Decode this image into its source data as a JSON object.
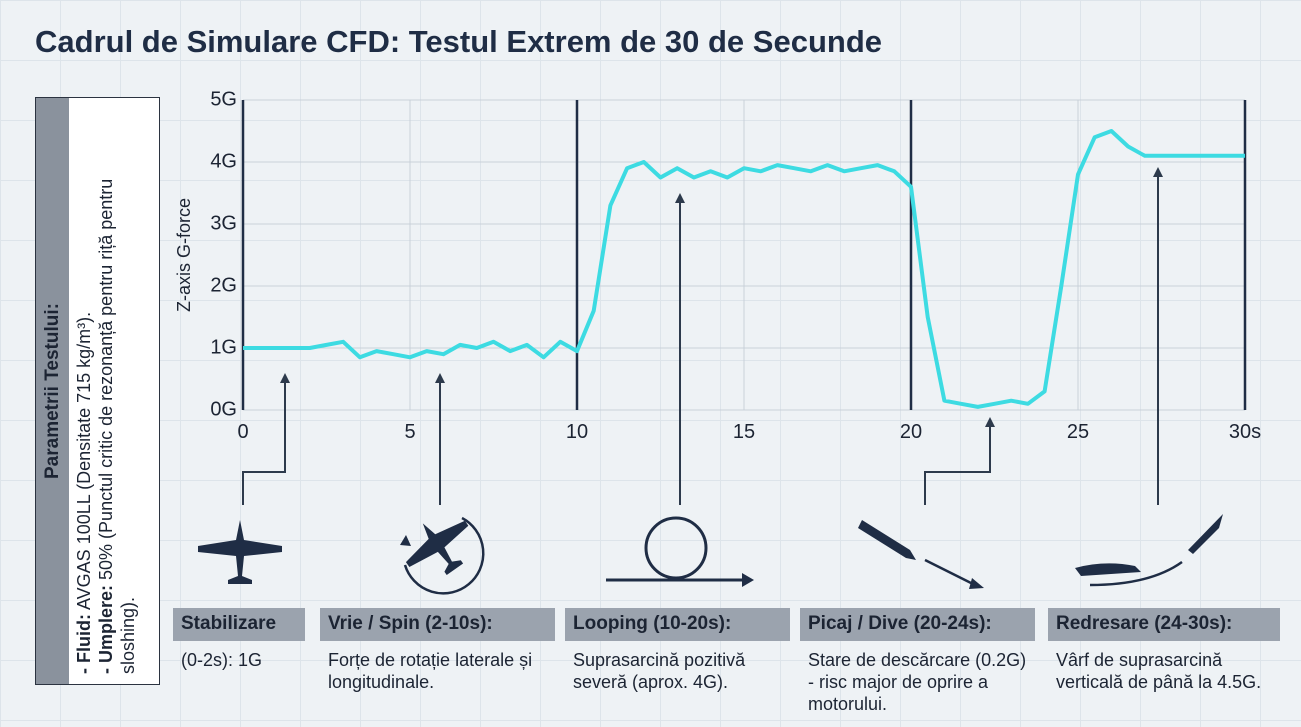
{
  "header": {
    "title": "Cadrul de Simulare CFD: Testul Extrem de 30 de Secunde"
  },
  "parameters": {
    "title": "Parametrii Testului:",
    "items": [
      {
        "label": "- Fluid:",
        "text": "AVGAS 100LL (Densitate 715 kg/m³)."
      },
      {
        "label": "- Umplere:",
        "text": "50% (Punctul critic de rezonanță pentru riță pentru sloshing)."
      }
    ]
  },
  "chart_data": {
    "type": "line",
    "y_label": "Z-axis G-force",
    "x": [
      0,
      1,
      2,
      2.5,
      3,
      3.5,
      4,
      4.5,
      5,
      5.5,
      6,
      6.5,
      7,
      7.5,
      8,
      8.5,
      9,
      9.5,
      10,
      10.5,
      11,
      11.5,
      12,
      12.5,
      13,
      13.5,
      14,
      14.5,
      15,
      15.5,
      16,
      16.5,
      17,
      17.5,
      18,
      18.5,
      19,
      19.5,
      20,
      20.5,
      21,
      21.5,
      22,
      22.5,
      23,
      23.5,
      24,
      24.5,
      25,
      25.5,
      26,
      26.5,
      27,
      28,
      29,
      30
    ],
    "series": [
      {
        "name": "G-force",
        "color": "#3ddbe2",
        "values": [
          1,
          1,
          1,
          1.05,
          1.1,
          0.85,
          0.95,
          0.9,
          0.85,
          0.95,
          0.9,
          1.05,
          1.0,
          1.1,
          0.95,
          1.05,
          0.85,
          1.1,
          0.95,
          1.6,
          3.3,
          3.9,
          4.0,
          3.75,
          3.9,
          3.75,
          3.85,
          3.75,
          3.9,
          3.85,
          3.95,
          3.9,
          3.85,
          3.95,
          3.85,
          3.9,
          3.95,
          3.85,
          3.6,
          1.5,
          0.15,
          0.1,
          0.05,
          0.1,
          0.15,
          0.1,
          0.3,
          2.0,
          3.8,
          4.4,
          4.5,
          4.25,
          4.1,
          4.1,
          4.1,
          4.1
        ]
      }
    ],
    "xlim": [
      0,
      30
    ],
    "xticks": [
      0,
      5,
      10,
      15,
      20,
      25,
      {
        "value": 30,
        "label": "30s"
      }
    ],
    "ylim": [
      0,
      5
    ],
    "yticks": [
      {
        "value": 0,
        "label": "0G"
      },
      {
        "value": 1,
        "label": "1G"
      },
      {
        "value": 2,
        "label": "2G"
      },
      {
        "value": 3,
        "label": "3G"
      },
      {
        "value": 4,
        "label": "4G"
      },
      {
        "value": 5,
        "label": "5G"
      }
    ],
    "grid": true
  },
  "phases": [
    {
      "label": "Stabilizare",
      "text": "(0-2s): 1G"
    },
    {
      "label": "Vrie / Spin (2-10s):",
      "text": "Forțe de rotație laterale și longitudinale."
    },
    {
      "label": "Looping (10-20s):",
      "text": "Suprasarcină pozitivă severă (aprox. 4G)."
    },
    {
      "label": "Picaj / Dive (20-24s):",
      "text": "Stare de descărcare (0.2G) - risc major de oprire a motorului."
    },
    {
      "label": "Redresare (24-30s):",
      "text": "Vârf de suprasarcină verticală de până la 4.5G."
    }
  ]
}
